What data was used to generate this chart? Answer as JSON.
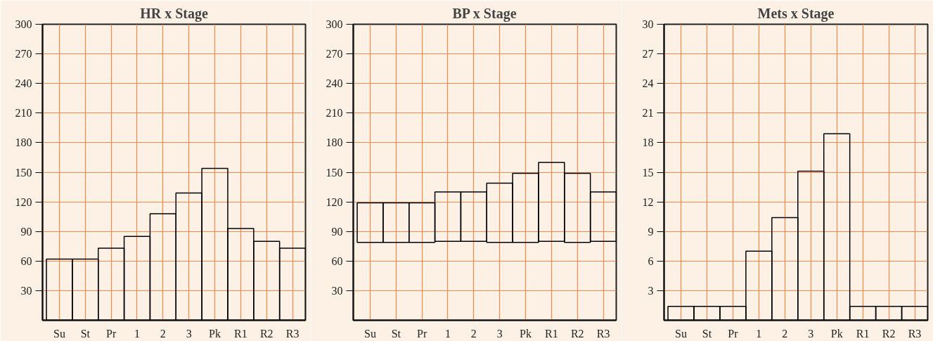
{
  "chart_data": [
    {
      "type": "bar",
      "title": "HR x Stage",
      "categories": [
        "Su",
        "St",
        "Pr",
        "1",
        "2",
        "3",
        "Pk",
        "R1",
        "R2",
        "R3"
      ],
      "values": [
        62,
        62,
        73,
        85,
        108,
        129,
        154,
        93,
        80,
        73
      ],
      "color": "#000000",
      "ylim": [
        0,
        300
      ],
      "yticks": [
        30,
        60,
        90,
        120,
        150,
        180,
        210,
        240,
        270,
        300
      ],
      "grid": true
    },
    {
      "type": "bar",
      "title": "BP x Stage",
      "categories": [
        "Su",
        "St",
        "Pr",
        "1",
        "2",
        "3",
        "Pk",
        "R1",
        "R2",
        "R3"
      ],
      "base": [
        79,
        79,
        79,
        80,
        80,
        79,
        79,
        80,
        79,
        80
      ],
      "values": [
        40,
        40,
        40,
        50,
        50,
        60,
        70,
        80,
        70,
        50
      ],
      "color": "#000000",
      "ylim": [
        0,
        300
      ],
      "yticks": [
        30,
        60,
        90,
        120,
        150,
        180,
        210,
        240,
        270,
        300
      ],
      "grid": true
    },
    {
      "type": "bar",
      "title": "Mets x Stage",
      "categories": [
        "Su",
        "St",
        "Pr",
        "1",
        "2",
        "3",
        "Pk",
        "R1",
        "R2",
        "R3"
      ],
      "values": [
        1.4,
        1.4,
        1.4,
        7.0,
        10.4,
        15.1,
        18.9,
        1.4,
        1.4,
        1.4
      ],
      "color": "#000000",
      "ylim": [
        0,
        30
      ],
      "yticks": [
        3,
        6,
        9,
        12,
        15,
        18,
        21,
        24,
        27,
        30
      ],
      "grid": true
    }
  ]
}
